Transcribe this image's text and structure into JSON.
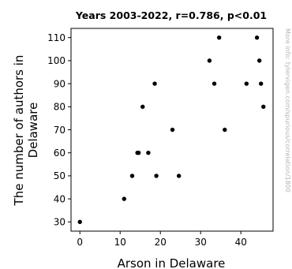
{
  "chart_data": {
    "type": "scatter",
    "title": "Years 2003-2022, r=0.786, p<0.01",
    "xlabel": "Arson in Delaware",
    "ylabel_lines": [
      "The number of authors in",
      "Delaware"
    ],
    "xlim": [
      -2.2,
      48
    ],
    "ylim": [
      26,
      114
    ],
    "xticks": [
      0,
      10,
      20,
      30,
      40
    ],
    "yticks": [
      30,
      40,
      50,
      60,
      70,
      80,
      90,
      100,
      110
    ],
    "grid": false,
    "point_color": "#000000",
    "points": [
      {
        "x": 0,
        "y": 30
      },
      {
        "x": 11,
        "y": 40
      },
      {
        "x": 13,
        "y": 50
      },
      {
        "x": 14.3,
        "y": 60
      },
      {
        "x": 14.6,
        "y": 60
      },
      {
        "x": 15.6,
        "y": 80
      },
      {
        "x": 17,
        "y": 60
      },
      {
        "x": 18.6,
        "y": 90
      },
      {
        "x": 19,
        "y": 50
      },
      {
        "x": 23,
        "y": 70
      },
      {
        "x": 24.6,
        "y": 50
      },
      {
        "x": 32.2,
        "y": 100
      },
      {
        "x": 33.4,
        "y": 90
      },
      {
        "x": 34.6,
        "y": 110
      },
      {
        "x": 36,
        "y": 70
      },
      {
        "x": 41.4,
        "y": 90
      },
      {
        "x": 44,
        "y": 110
      },
      {
        "x": 44.6,
        "y": 100
      },
      {
        "x": 45,
        "y": 90
      },
      {
        "x": 45.6,
        "y": 80
      }
    ]
  },
  "watermark": "More info: tylervigen.com/spurious/correlation/1800"
}
